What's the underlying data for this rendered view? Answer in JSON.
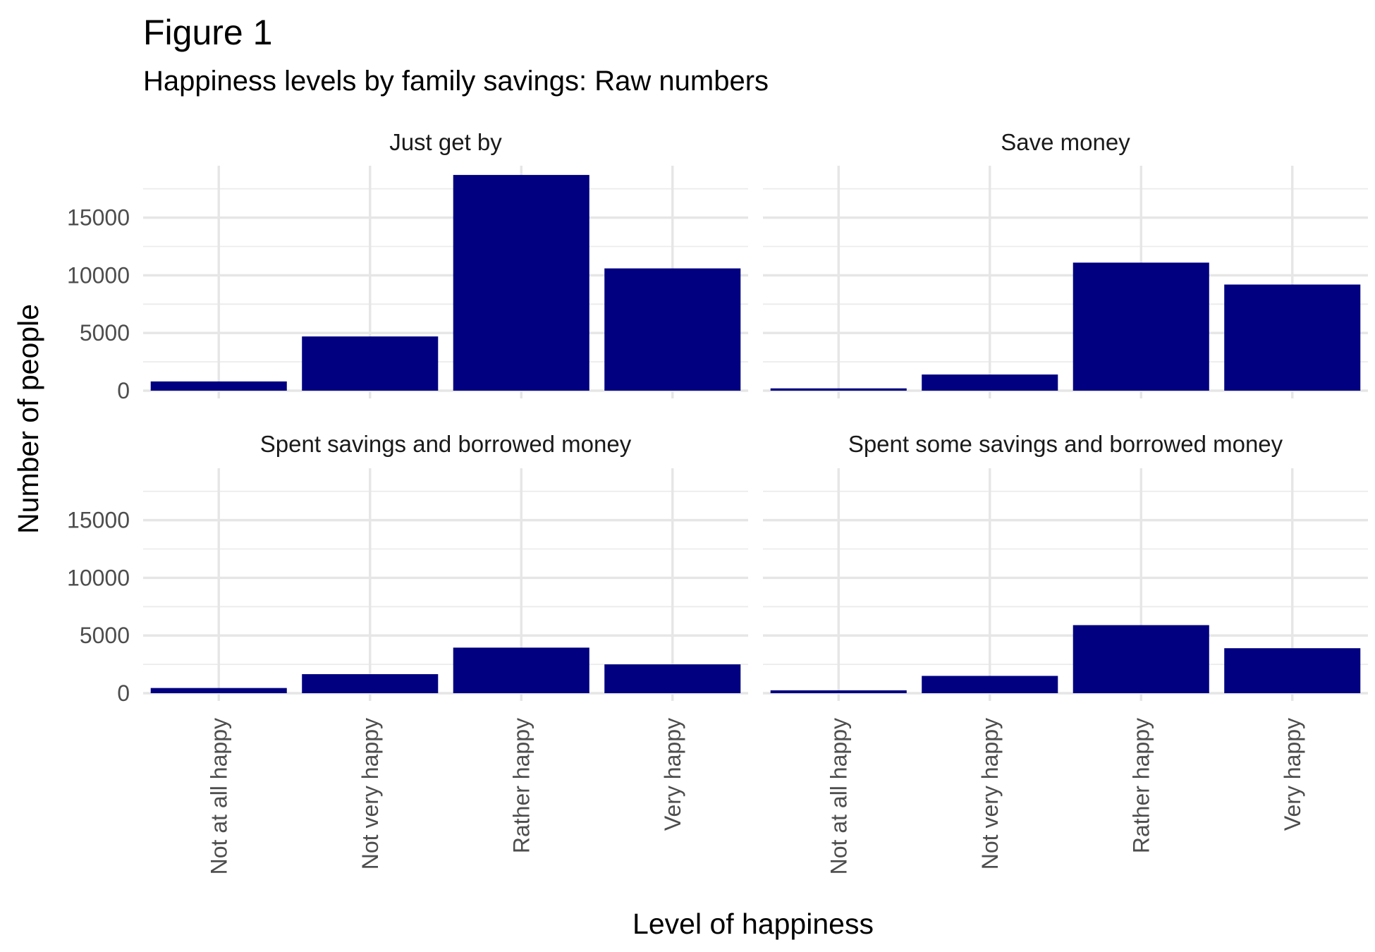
{
  "chart_data": {
    "type": "bar",
    "title": "Figure 1",
    "subtitle": "Happiness levels by family savings: Raw numbers",
    "xlabel": "Level of happiness",
    "ylabel": "Number of people",
    "categories": [
      "Not at all happy",
      "Not very happy",
      "Rather happy",
      "Very happy"
    ],
    "ylim": [
      0,
      19500
    ],
    "yticks": [
      0,
      5000,
      10000,
      15000
    ],
    "ytick_labels": [
      "0",
      "5000",
      "10000",
      "15000"
    ],
    "grid": true,
    "bar_color": "#000080",
    "facets": [
      {
        "name": "Just get by",
        "values": [
          800,
          4700,
          18700,
          10600
        ]
      },
      {
        "name": "Save money",
        "values": [
          200,
          1400,
          11100,
          9200
        ]
      },
      {
        "name": "Spent savings and borrowed money",
        "values": [
          450,
          1650,
          3950,
          2500
        ]
      },
      {
        "name": "Spent some savings and borrowed money",
        "values": [
          250,
          1500,
          5900,
          3900
        ]
      }
    ]
  }
}
